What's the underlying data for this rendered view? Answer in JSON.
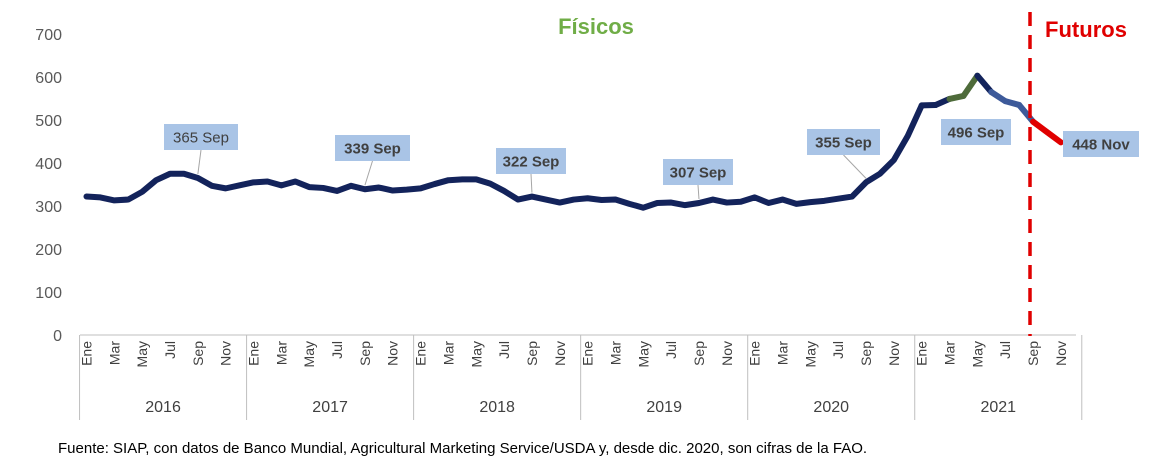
{
  "chart_data": {
    "type": "line",
    "ylim": [
      0,
      700
    ],
    "yticks": [
      "0",
      "100",
      "200",
      "300",
      "400",
      "500",
      "600",
      "700"
    ],
    "month_labels": [
      "Ene",
      "Mar",
      "May",
      "Jul",
      "Sep",
      "Nov"
    ],
    "years": [
      "2016",
      "2017",
      "2018",
      "2019",
      "2020",
      "2021"
    ],
    "sections": {
      "fisicos": "Físicos",
      "futuros": "Futuros"
    },
    "colors": {
      "line": "#13235b",
      "futures_line": "#e00000",
      "fisicos_text": "#70ad47",
      "futuros_text": "#e00000",
      "callout_fill": "#a9c4e6",
      "divider": "#e00000",
      "green_segment": "#4e6b3a",
      "blue_segment": "#3d5a9a"
    },
    "series": [
      {
        "x": [
          "2016-01",
          "2016-02",
          "2016-03",
          "2016-04",
          "2016-05",
          "2016-06",
          "2016-07",
          "2016-08",
          "2016-09",
          "2016-10",
          "2016-11",
          "2016-12",
          "2017-01",
          "2017-02",
          "2017-03",
          "2017-04",
          "2017-05",
          "2017-06",
          "2017-07",
          "2017-08",
          "2017-09",
          "2017-10",
          "2017-11",
          "2017-12",
          "2018-01",
          "2018-02",
          "2018-03",
          "2018-04",
          "2018-05",
          "2018-06",
          "2018-07",
          "2018-08",
          "2018-09",
          "2018-10",
          "2018-11",
          "2018-12",
          "2019-01",
          "2019-02",
          "2019-03",
          "2019-04",
          "2019-05",
          "2019-06",
          "2019-07",
          "2019-08",
          "2019-09",
          "2019-10",
          "2019-11",
          "2019-12",
          "2020-01",
          "2020-02",
          "2020-03",
          "2020-04",
          "2020-05",
          "2020-06",
          "2020-07",
          "2020-08",
          "2020-09",
          "2020-10",
          "2020-11",
          "2020-12",
          "2021-01",
          "2021-02",
          "2021-03",
          "2021-04",
          "2021-05",
          "2021-06",
          "2021-07",
          "2021-08",
          "2021-09"
        ],
        "values": [
          322,
          320,
          313,
          315,
          333,
          360,
          375,
          375,
          365,
          347,
          341,
          348,
          355,
          357,
          348,
          357,
          344,
          342,
          335,
          347,
          339,
          343,
          336,
          338,
          341,
          351,
          360,
          362,
          362,
          352,
          335,
          315,
          322,
          315,
          308,
          315,
          318,
          314,
          315,
          305,
          296,
          307,
          308,
          302,
          307,
          315,
          308,
          310,
          320,
          307,
          315,
          305,
          309,
          312,
          317,
          322,
          355,
          375,
          407,
          463,
          534,
          535,
          549,
          556,
          603,
          565,
          544,
          535,
          496
        ]
      },
      {
        "x": [
          "2021-09",
          "2021-10",
          "2021-11"
        ],
        "values": [
          496,
          472,
          448
        ]
      }
    ],
    "callouts": [
      {
        "text": "365 Sep"
      },
      {
        "text": "339 Sep"
      },
      {
        "text": "322 Sep"
      },
      {
        "text": "307 Sep"
      },
      {
        "text": "355 Sep"
      },
      {
        "text": "496 Sep"
      },
      {
        "text": "448 Nov"
      }
    ]
  },
  "source_note": "Fuente: SIAP, con datos de Banco Mundial, Agricultural Marketing Service/USDA y, desde dic. 2020, son cifras de la FAO."
}
